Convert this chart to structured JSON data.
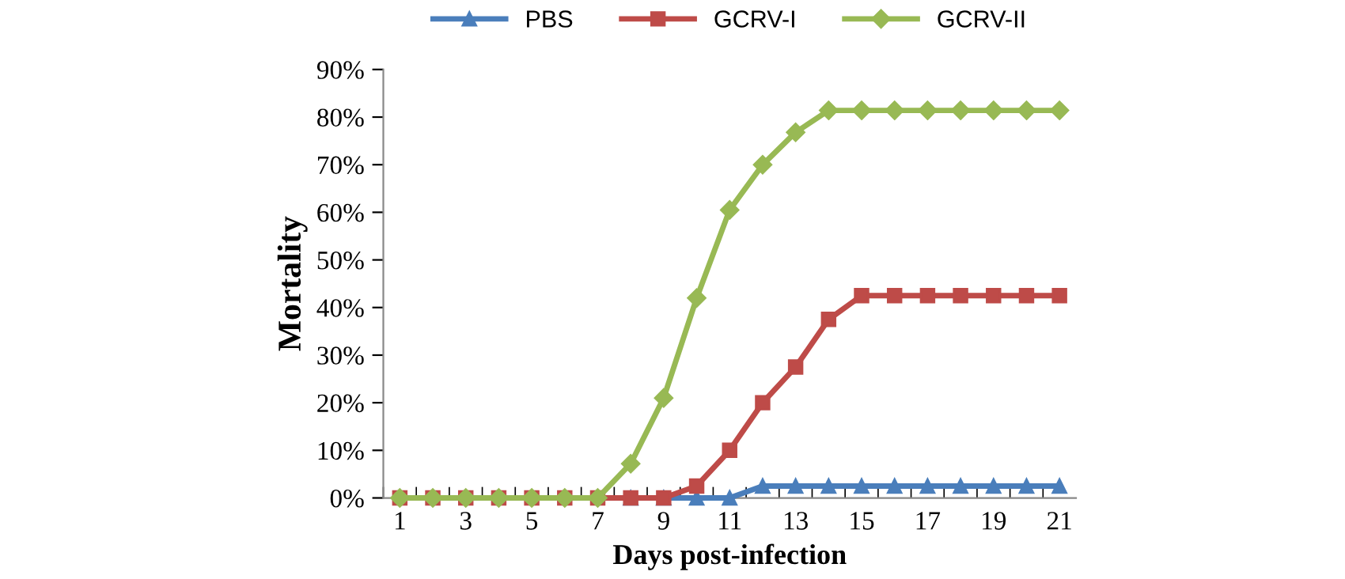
{
  "chart_data": {
    "type": "line",
    "xlabel": "Days post-infection",
    "ylabel": "Mortality",
    "categories": [
      "1",
      null,
      "3",
      null,
      "5",
      null,
      "7",
      null,
      "9",
      null,
      "11",
      null,
      "13",
      null,
      "15",
      null,
      "17",
      null,
      "19",
      null,
      "21"
    ],
    "series": [
      {
        "name": "PBS",
        "color": "#4a7ebb",
        "marker": "triangle",
        "values": [
          null,
          null,
          null,
          null,
          null,
          null,
          null,
          0,
          0,
          0,
          0,
          2.5,
          2.5,
          2.5,
          2.5,
          2.5,
          2.5,
          2.5,
          2.5,
          2.5,
          2.5
        ]
      },
      {
        "name": "GCRV-I",
        "color": "#be4b48",
        "marker": "square",
        "values": [
          0,
          0,
          0,
          0,
          0,
          0,
          0,
          0,
          0,
          2.5,
          10,
          20,
          27.5,
          37.5,
          42.5,
          42.5,
          42.5,
          42.5,
          42.5,
          42.5,
          42.5
        ]
      },
      {
        "name": "GCRV-II",
        "color": "#98b954",
        "marker": "diamond",
        "values": [
          0,
          0,
          0,
          0,
          0,
          0,
          0,
          7.2,
          21,
          42,
          60.5,
          70,
          76.8,
          81.4,
          81.4,
          81.4,
          81.4,
          81.4,
          81.4,
          81.4,
          81.4
        ]
      }
    ],
    "ylim": [
      0,
      90
    ],
    "yticks": [
      {
        "value": 0,
        "label": "0%"
      },
      {
        "value": 10,
        "label": "10%"
      },
      {
        "value": 20,
        "label": "20%"
      },
      {
        "value": 30,
        "label": "30%"
      },
      {
        "value": 40,
        "label": "40%"
      },
      {
        "value": 50,
        "label": "50%"
      },
      {
        "value": 60,
        "label": "60%"
      },
      {
        "value": 70,
        "label": "70%"
      },
      {
        "value": 80,
        "label": "80%"
      },
      {
        "value": 90,
        "label": "90%"
      }
    ],
    "grid": false,
    "legend": "top",
    "line_style": "solid"
  }
}
